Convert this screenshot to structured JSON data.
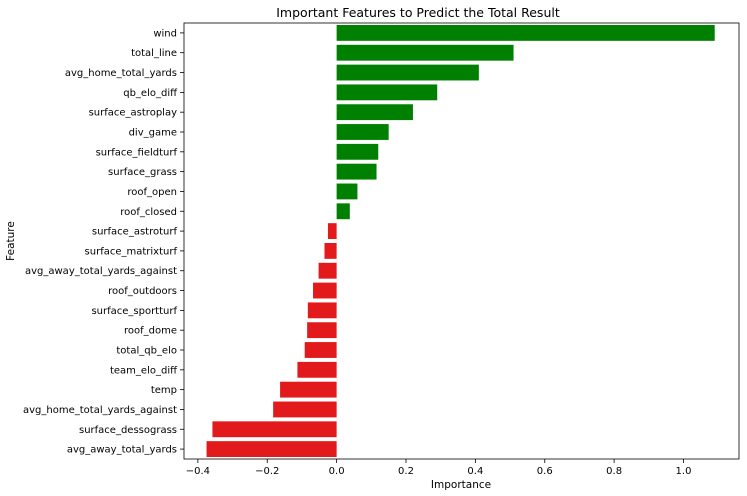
{
  "chart_data": {
    "type": "bar",
    "orientation": "horizontal",
    "title": "Important Features to Predict the Total Result",
    "xlabel": "Importance",
    "ylabel": "Feature",
    "xlim": [
      -0.44,
      1.16
    ],
    "xticks": [
      -0.4,
      -0.2,
      0.0,
      0.2,
      0.4,
      0.6,
      0.8,
      1.0
    ],
    "xtick_labels": [
      "−0.4",
      "−0.2",
      "0.0",
      "0.2",
      "0.4",
      "0.6",
      "0.8",
      "1.0"
    ],
    "grid": false,
    "positive_color": "#008000",
    "negative_color": "#e31a1c",
    "categories": [
      "wind",
      "total_line",
      "avg_home_total_yards",
      "qb_elo_diff",
      "surface_astroplay",
      "div_game",
      "surface_fieldturf",
      "surface_grass",
      "roof_open",
      "roof_closed",
      "surface_astroturf",
      "surface_matrixturf",
      "avg_away_total_yards_against",
      "roof_outdoors",
      "surface_sportturf",
      "roof_dome",
      "total_qb_elo",
      "team_elo_diff",
      "temp",
      "avg_home_total_yards_against",
      "surface_dessograss",
      "avg_away_total_yards"
    ],
    "values": [
      1.09,
      0.51,
      0.41,
      0.29,
      0.22,
      0.15,
      0.12,
      0.115,
      0.06,
      0.038,
      -0.025,
      -0.035,
      -0.052,
      -0.068,
      -0.083,
      -0.085,
      -0.092,
      -0.113,
      -0.163,
      -0.183,
      -0.358,
      -0.375
    ]
  }
}
